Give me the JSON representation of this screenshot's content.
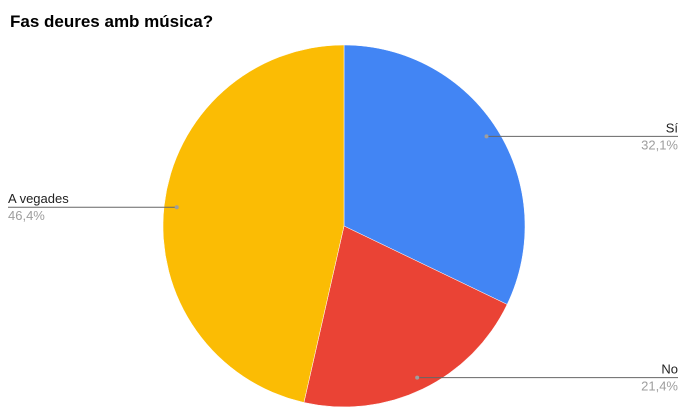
{
  "chart_data": {
    "type": "pie",
    "title": "Fas deures amb música?",
    "start_angle_deg": 0,
    "direction": "clockwise",
    "legend": "none",
    "slices": [
      {
        "label": "Sí",
        "value": 32.1,
        "percent_label": "32,1%",
        "color": "#4285F4",
        "label_side": "right"
      },
      {
        "label": "No",
        "value": 21.4,
        "percent_label": "21,4%",
        "color": "#EA4335",
        "label_side": "right"
      },
      {
        "label": "A vegades",
        "value": 46.4,
        "percent_label": "46,4%",
        "color": "#FBBC04",
        "label_side": "left"
      }
    ]
  }
}
